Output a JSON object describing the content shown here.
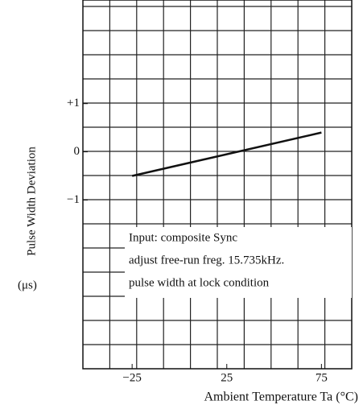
{
  "chart_data": {
    "type": "line",
    "y_label": "Pulse Width Deviation",
    "y_unit": "(μs)",
    "x_label": "Ambient Temperature Ta (°C)",
    "annotation": [
      "Input:   composite Sync",
      "adjust free-run freg. 15.735kHz.",
      "pulse width at lock condition"
    ],
    "x": [
      -25,
      75
    ],
    "series": [
      {
        "color": "#111111",
        "values": [
          -0.5,
          0.4
        ]
      }
    ],
    "xlim": [
      -51,
      91
    ],
    "xticks": [
      {
        "value": -25,
        "label": "−25"
      },
      25,
      75
    ],
    "ylim": [
      -4.5,
      3.15
    ],
    "yticks": [
      {
        "value": 1,
        "label": "+1"
      },
      0,
      {
        "value": -1,
        "label": "−1"
      }
    ],
    "grid": true
  }
}
